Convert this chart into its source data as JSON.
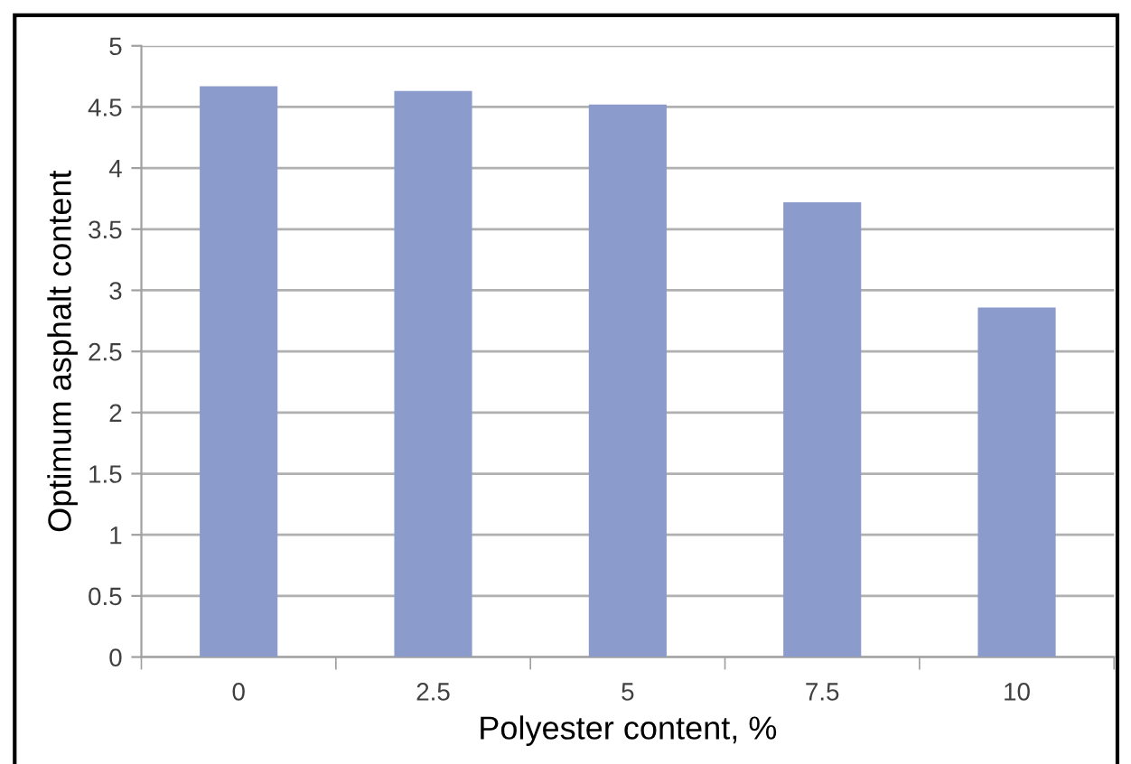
{
  "chart_data": {
    "type": "bar",
    "xlabel": "Polyester content, %",
    "ylabel": "Optimum asphalt content",
    "categories": [
      "0",
      "2.5",
      "5",
      "7.5",
      "10"
    ],
    "values": [
      4.67,
      4.63,
      4.52,
      3.72,
      2.86
    ],
    "color": "#8a9bcc",
    "ylim": [
      0,
      5
    ],
    "yticks": [
      0,
      0.5,
      1,
      1.5,
      2,
      2.5,
      3,
      3.5,
      4,
      4.5,
      5
    ],
    "grid": "y"
  }
}
